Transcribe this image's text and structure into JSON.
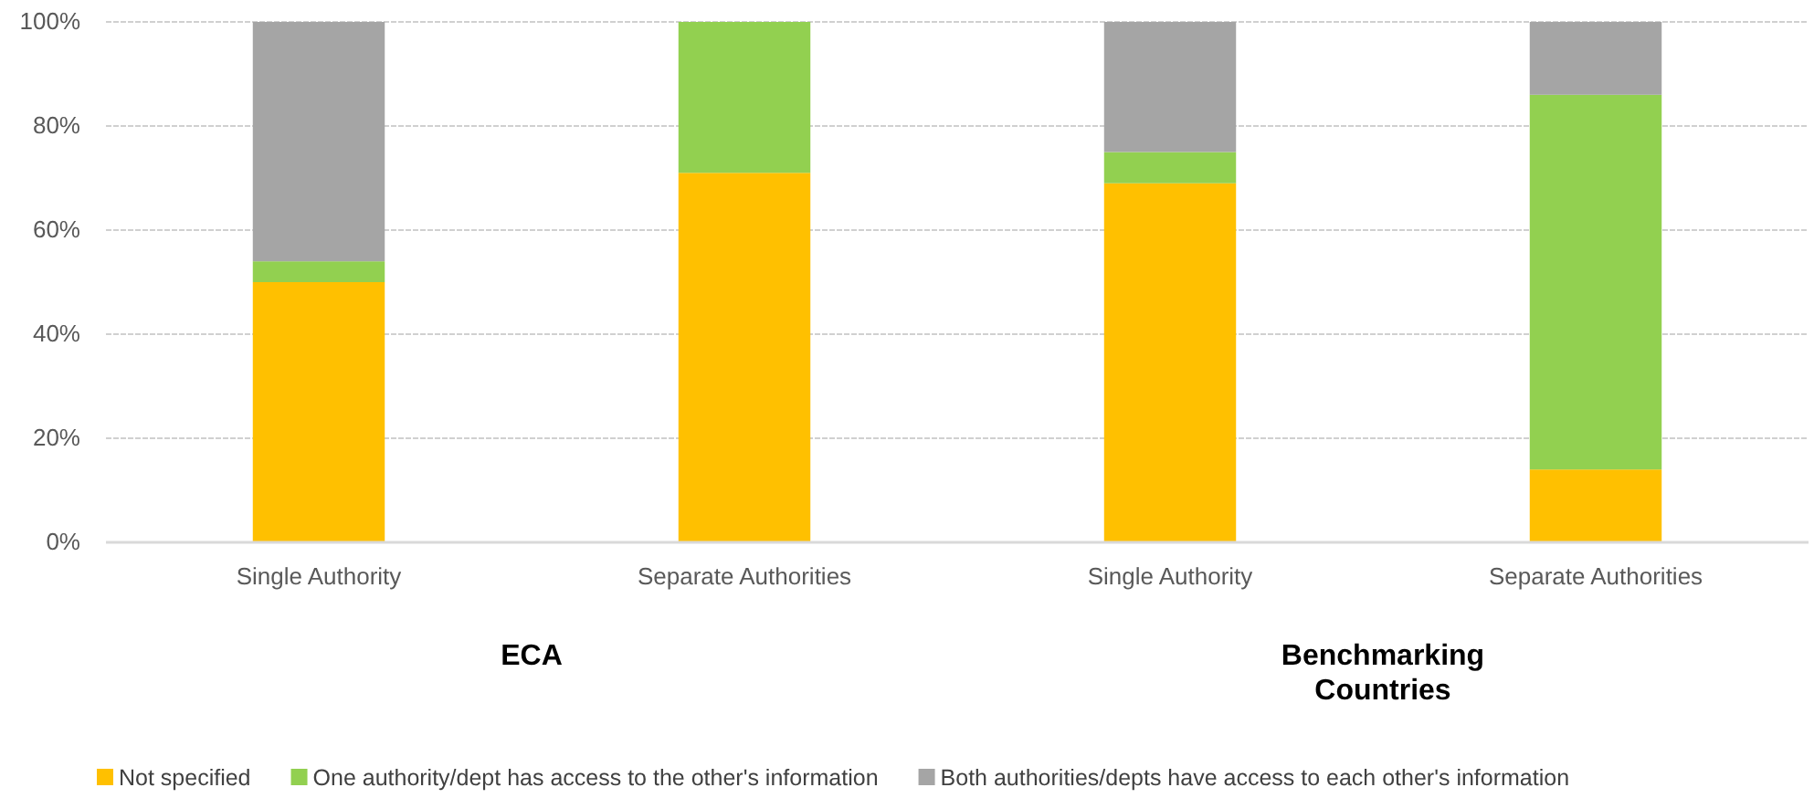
{
  "chart_data": {
    "type": "bar",
    "stacked": true,
    "categories": [
      "Single Authority",
      "Separate Authorities",
      "Single Authority",
      "Separate Authorities"
    ],
    "series": [
      {
        "name": "Not specified",
        "color": "#ffc000",
        "values": [
          50,
          71,
          69,
          14
        ]
      },
      {
        "name": "One authority/dept has access to the other's information",
        "color": "#92d050",
        "values": [
          4,
          29,
          6,
          72
        ]
      },
      {
        "name": "Both authorities/depts have access to each other's information",
        "color": "#a5a5a5",
        "values": [
          46,
          0,
          25,
          14
        ]
      }
    ],
    "ylim": [
      0,
      100
    ],
    "yticks": [
      {
        "value": 0,
        "label": "0%"
      },
      {
        "value": 20,
        "label": "20%"
      },
      {
        "value": 40,
        "label": "40%"
      },
      {
        "value": 60,
        "label": "60%"
      },
      {
        "value": 80,
        "label": "80%"
      },
      {
        "value": 100,
        "label": "100%"
      }
    ],
    "grid": "y",
    "legend": "bottom",
    "annotations": [
      "ECA",
      "Benchmarking Countries"
    ]
  }
}
